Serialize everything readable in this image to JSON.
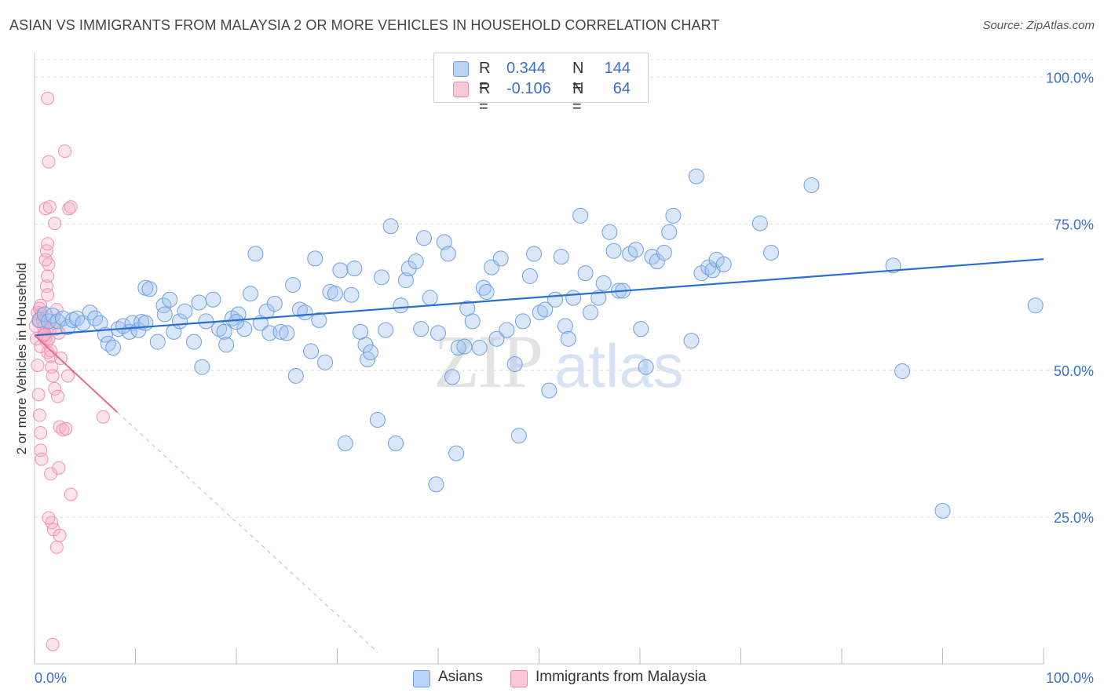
{
  "title": "ASIAN VS IMMIGRANTS FROM MALAYSIA 2 OR MORE VEHICLES IN HOUSEHOLD CORRELATION CHART",
  "source": "Source: ZipAtlas.com",
  "watermark": {
    "zip": "ZIP",
    "atlas": "atlas"
  },
  "legend": {
    "rows": [
      {
        "r_label": "R =",
        "r_value": "0.344",
        "n_label": "N =",
        "n_value": "144",
        "color": "#a9c8f0",
        "border": "#6f9fdc"
      },
      {
        "r_label": "R =",
        "r_value": "-0.106",
        "n_label": "N =",
        "n_value": "64",
        "color": "#f6bdd0",
        "border": "#e88aaa"
      }
    ]
  },
  "bottom_legend": {
    "asians": "Asians",
    "malaysia": "Immigrants from Malaysia"
  },
  "colors": {
    "blue": "#6fa0e0",
    "blue_line": "#2a6fd0",
    "pink": "#f190b0",
    "pink_line": "#e8679a",
    "tick_label": "#3a70c8"
  },
  "chart_data": {
    "type": "scatter",
    "title": "ASIAN VS IMMIGRANTS FROM MALAYSIA 2 OR MORE VEHICLES IN HOUSEHOLD CORRELATION CHART",
    "xlabel": "",
    "ylabel": "2 or more Vehicles in Household",
    "xlim": [
      0,
      100
    ],
    "ylim": [
      0,
      103
    ],
    "x_tick_labels": [
      "0.0%",
      "100.0%"
    ],
    "y_ticks": [
      25,
      50,
      75,
      100
    ],
    "y_tick_labels": [
      "25.0%",
      "50.0%",
      "75.0%",
      "100.0%"
    ],
    "grid": true,
    "legend_position": "top-center",
    "series": [
      {
        "name": "Asians",
        "r": 0.344,
        "n": 144,
        "trend": [
          [
            0,
            56.0
          ],
          [
            100,
            69.0
          ]
        ],
        "points": [
          [
            0.5,
            58.6
          ],
          [
            1.0,
            59.6
          ],
          [
            1.4,
            58.4
          ],
          [
            1.8,
            59.4
          ],
          [
            2.3,
            58.4
          ],
          [
            2.8,
            58.9
          ],
          [
            3.3,
            57.4
          ],
          [
            3.8,
            58.6
          ],
          [
            4.2,
            58.9
          ],
          [
            4.8,
            58.1
          ],
          [
            5.5,
            59.9
          ],
          [
            6.0,
            58.9
          ],
          [
            6.5,
            58.1
          ],
          [
            7.0,
            56.1
          ],
          [
            7.3,
            54.6
          ],
          [
            7.8,
            53.9
          ],
          [
            8.3,
            57.1
          ],
          [
            8.8,
            57.6
          ],
          [
            9.4,
            56.6
          ],
          [
            9.7,
            58.1
          ],
          [
            10.3,
            56.9
          ],
          [
            10.6,
            58.3
          ],
          [
            11.0,
            58.1
          ],
          [
            11.0,
            64.1
          ],
          [
            11.4,
            63.9
          ],
          [
            12.2,
            54.9
          ],
          [
            12.8,
            61.1
          ],
          [
            12.9,
            59.6
          ],
          [
            13.4,
            62.1
          ],
          [
            13.8,
            56.6
          ],
          [
            14.4,
            58.4
          ],
          [
            14.9,
            60.1
          ],
          [
            15.8,
            54.9
          ],
          [
            16.3,
            61.6
          ],
          [
            16.6,
            50.6
          ],
          [
            17.0,
            58.4
          ],
          [
            17.7,
            62.1
          ],
          [
            18.3,
            57.1
          ],
          [
            18.8,
            56.6
          ],
          [
            19.0,
            54.4
          ],
          [
            19.6,
            58.9
          ],
          [
            20.2,
            59.6
          ],
          [
            20.8,
            57.1
          ],
          [
            21.4,
            63.1
          ],
          [
            21.9,
            69.9
          ],
          [
            22.4,
            58.1
          ],
          [
            23.0,
            60.1
          ],
          [
            23.3,
            56.4
          ],
          [
            23.8,
            61.4
          ],
          [
            24.4,
            56.6
          ],
          [
            25.0,
            56.4
          ],
          [
            25.6,
            64.6
          ],
          [
            25.9,
            49.1
          ],
          [
            26.3,
            60.4
          ],
          [
            26.8,
            59.9
          ],
          [
            27.4,
            53.3
          ],
          [
            27.8,
            69.1
          ],
          [
            28.2,
            58.6
          ],
          [
            28.8,
            51.4
          ],
          [
            29.3,
            63.4
          ],
          [
            29.8,
            63.1
          ],
          [
            30.3,
            67.1
          ],
          [
            30.8,
            37.6
          ],
          [
            31.4,
            62.9
          ],
          [
            31.7,
            67.4
          ],
          [
            32.3,
            56.6
          ],
          [
            32.8,
            54.4
          ],
          [
            33.0,
            51.9
          ],
          [
            33.3,
            53.1
          ],
          [
            34.0,
            41.6
          ],
          [
            34.4,
            65.9
          ],
          [
            34.8,
            56.9
          ],
          [
            35.3,
            74.6
          ],
          [
            35.8,
            37.6
          ],
          [
            36.3,
            61.1
          ],
          [
            36.8,
            65.4
          ],
          [
            37.1,
            67.4
          ],
          [
            37.8,
            68.6
          ],
          [
            38.3,
            57.1
          ],
          [
            38.6,
            72.6
          ],
          [
            39.2,
            62.4
          ],
          [
            39.8,
            30.6
          ],
          [
            40.0,
            56.4
          ],
          [
            40.6,
            71.9
          ],
          [
            41.0,
            69.9
          ],
          [
            41.4,
            48.9
          ],
          [
            41.8,
            35.9
          ],
          [
            42.0,
            53.9
          ],
          [
            42.6,
            54.1
          ],
          [
            42.9,
            60.6
          ],
          [
            43.4,
            58.4
          ],
          [
            44.1,
            53.9
          ],
          [
            44.5,
            64.1
          ],
          [
            44.8,
            63.4
          ],
          [
            45.3,
            67.6
          ],
          [
            45.8,
            55.4
          ],
          [
            46.2,
            69.1
          ],
          [
            46.8,
            56.9
          ],
          [
            47.6,
            51.1
          ],
          [
            48.0,
            38.9
          ],
          [
            48.4,
            58.4
          ],
          [
            49.1,
            66.1
          ],
          [
            49.5,
            69.9
          ],
          [
            50.1,
            59.9
          ],
          [
            50.6,
            60.4
          ],
          [
            51.0,
            46.6
          ],
          [
            51.6,
            62.1
          ],
          [
            52.2,
            69.4
          ],
          [
            52.6,
            57.6
          ],
          [
            52.9,
            55.4
          ],
          [
            53.4,
            62.4
          ],
          [
            54.1,
            76.4
          ],
          [
            54.6,
            66.6
          ],
          [
            55.1,
            59.9
          ],
          [
            55.9,
            62.4
          ],
          [
            56.4,
            64.9
          ],
          [
            57.0,
            73.6
          ],
          [
            57.4,
            70.4
          ],
          [
            57.9,
            63.6
          ],
          [
            58.3,
            63.6
          ],
          [
            59.0,
            69.9
          ],
          [
            59.6,
            70.6
          ],
          [
            60.1,
            57.1
          ],
          [
            60.6,
            50.6
          ],
          [
            61.2,
            69.4
          ],
          [
            61.7,
            68.6
          ],
          [
            62.4,
            70.1
          ],
          [
            62.9,
            73.6
          ],
          [
            63.3,
            76.4
          ],
          [
            65.1,
            55.1
          ],
          [
            65.6,
            83.1
          ],
          [
            66.1,
            66.6
          ],
          [
            66.8,
            67.6
          ],
          [
            67.2,
            67.1
          ],
          [
            67.6,
            68.9
          ],
          [
            68.3,
            68.1
          ],
          [
            71.9,
            75.1
          ],
          [
            73.0,
            70.1
          ],
          [
            77.0,
            81.6
          ],
          [
            85.1,
            67.9
          ],
          [
            86.0,
            49.9
          ],
          [
            90.0,
            26.1
          ],
          [
            99.2,
            61.1
          ],
          [
            20.0,
            58.3
          ]
        ]
      },
      {
        "name": "Immigrants from Malaysia",
        "r": -0.106,
        "n": 64,
        "trend": [
          [
            0,
            56.0
          ],
          [
            8.2,
            42.9
          ]
        ],
        "trend_dashed": [
          [
            8.2,
            42.9
          ],
          [
            34.0,
            2.0
          ]
        ],
        "points": [
          [
            0.1,
            57.6
          ],
          [
            0.2,
            55.4
          ],
          [
            0.3,
            50.9
          ],
          [
            0.4,
            45.9
          ],
          [
            0.5,
            42.4
          ],
          [
            0.6,
            39.4
          ],
          [
            0.6,
            36.4
          ],
          [
            0.7,
            34.9
          ],
          [
            0.3,
            59.9
          ],
          [
            0.4,
            58.4
          ],
          [
            0.5,
            60.6
          ],
          [
            0.6,
            61.1
          ],
          [
            0.7,
            59.6
          ],
          [
            0.8,
            58.4
          ],
          [
            0.9,
            57.4
          ],
          [
            1.0,
            56.4
          ],
          [
            1.1,
            55.6
          ],
          [
            1.2,
            54.9
          ],
          [
            1.3,
            53.1
          ],
          [
            1.4,
            55.4
          ],
          [
            1.5,
            56.9
          ],
          [
            1.6,
            52.4
          ],
          [
            1.7,
            50.6
          ],
          [
            1.8,
            49.1
          ],
          [
            1.2,
            64.4
          ],
          [
            1.3,
            62.9
          ],
          [
            1.3,
            66.1
          ],
          [
            1.4,
            68.1
          ],
          [
            1.1,
            68.9
          ],
          [
            1.2,
            70.4
          ],
          [
            1.3,
            71.6
          ],
          [
            1.1,
            77.6
          ],
          [
            1.5,
            77.9
          ],
          [
            2.0,
            75.1
          ],
          [
            1.4,
            85.6
          ],
          [
            1.3,
            96.4
          ],
          [
            3.0,
            87.4
          ],
          [
            3.4,
            77.6
          ],
          [
            3.6,
            77.9
          ],
          [
            1.6,
            32.4
          ],
          [
            1.7,
            24.1
          ],
          [
            1.9,
            22.9
          ],
          [
            2.2,
            19.9
          ],
          [
            2.5,
            21.9
          ],
          [
            1.4,
            24.9
          ],
          [
            2.0,
            46.9
          ],
          [
            2.3,
            45.6
          ],
          [
            2.5,
            40.4
          ],
          [
            2.8,
            39.9
          ],
          [
            3.1,
            40.1
          ],
          [
            3.3,
            49.1
          ],
          [
            2.6,
            52.1
          ],
          [
            2.4,
            56.4
          ],
          [
            3.6,
            28.9
          ],
          [
            2.4,
            33.4
          ],
          [
            6.8,
            42.1
          ],
          [
            1.8,
            3.3
          ],
          [
            0.9,
            55.9
          ],
          [
            1.0,
            56.1
          ],
          [
            2.1,
            57.1
          ],
          [
            0.6,
            54.1
          ],
          [
            1.6,
            53.4
          ],
          [
            1.9,
            58.1
          ],
          [
            2.2,
            60.4
          ]
        ]
      }
    ]
  }
}
